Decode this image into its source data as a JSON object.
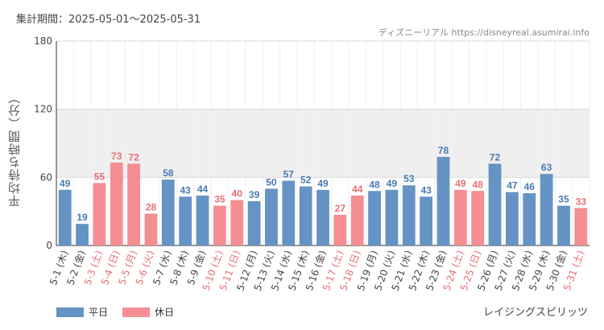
{
  "header": {
    "period": "集計期間：2025-05-01～2025-05-31",
    "credit": "ディズニーリアル https://disneyreal.asumirai.info"
  },
  "footer": {
    "attraction": "レイジングスピリッツ"
  },
  "colors": {
    "weekday": "#6593c3",
    "holiday": "#f48e93",
    "weekday_text": "#4a7ab0",
    "holiday_text": "#ea6e74",
    "band": "#efefef"
  },
  "chart_data": {
    "type": "bar",
    "ylabel": "平均待ち時間（分）",
    "ylim": [
      0,
      180
    ],
    "yticks": [
      0,
      60,
      120,
      180
    ],
    "shaded_band": [
      60,
      120
    ],
    "grid": true,
    "legend_position": "bottom-left",
    "series": [
      {
        "name": "平日"
      },
      {
        "name": "休日"
      }
    ],
    "categories": [
      "5-1 (木)",
      "5-2 (金)",
      "5-3 (土)",
      "5-4 (日)",
      "5-5 (月)",
      "5-6 (火)",
      "5-7 (水)",
      "5-8 (木)",
      "5-9 (金)",
      "5-10 (土)",
      "5-11 (日)",
      "5-12 (月)",
      "5-13 (火)",
      "5-14 (水)",
      "5-15 (木)",
      "5-16 (金)",
      "5-17 (土)",
      "5-18 (日)",
      "5-19 (月)",
      "5-20 (火)",
      "5-21 (水)",
      "5-22 (木)",
      "5-23 (金)",
      "5-24 (土)",
      "5-25 (日)",
      "5-26 (月)",
      "5-27 (火)",
      "5-28 (水)",
      "5-29 (木)",
      "5-30 (金)",
      "5-31 (土)"
    ],
    "values": [
      49,
      19,
      55,
      73,
      72,
      28,
      58,
      43,
      44,
      35,
      40,
      39,
      50,
      57,
      52,
      49,
      27,
      44,
      48,
      49,
      53,
      43,
      78,
      49,
      48,
      72,
      47,
      46,
      63,
      35,
      33
    ],
    "holiday": [
      false,
      false,
      true,
      true,
      true,
      true,
      false,
      false,
      false,
      true,
      true,
      false,
      false,
      false,
      false,
      false,
      true,
      true,
      false,
      false,
      false,
      false,
      false,
      true,
      true,
      false,
      false,
      false,
      false,
      false,
      true
    ]
  }
}
